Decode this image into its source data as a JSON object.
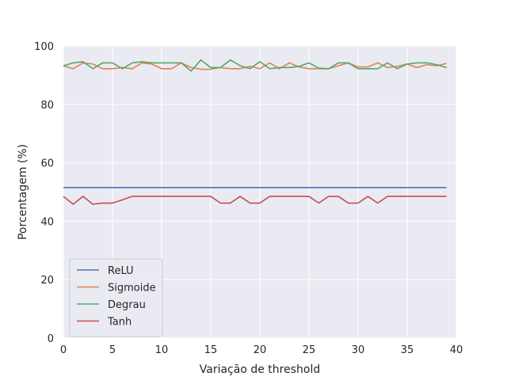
{
  "chart_data": {
    "type": "line",
    "title": "",
    "xlabel": "Variação de threshold",
    "ylabel": "Porcentagem (%)",
    "xlim": [
      0,
      40
    ],
    "ylim": [
      0,
      100
    ],
    "xticks": [
      0,
      5,
      10,
      15,
      20,
      25,
      30,
      35,
      40
    ],
    "yticks": [
      0,
      20,
      40,
      60,
      80,
      100
    ],
    "grid": true,
    "legend_position": "lower-left",
    "x": [
      0,
      1,
      2,
      3,
      4,
      5,
      6,
      7,
      8,
      9,
      10,
      11,
      12,
      13,
      14,
      15,
      16,
      17,
      18,
      19,
      20,
      21,
      22,
      23,
      24,
      25,
      26,
      27,
      28,
      29,
      30,
      31,
      32,
      33,
      34,
      35,
      36,
      37,
      38,
      39
    ],
    "series": [
      {
        "name": "ReLU",
        "color": "#4c72b0",
        "values": [
          51.5,
          51.5,
          51.5,
          51.5,
          51.5,
          51.5,
          51.5,
          51.5,
          51.5,
          51.5,
          51.5,
          51.5,
          51.5,
          51.5,
          51.5,
          51.5,
          51.5,
          51.5,
          51.5,
          51.5,
          51.5,
          51.5,
          51.5,
          51.5,
          51.5,
          51.5,
          51.5,
          51.5,
          51.5,
          51.5,
          51.5,
          51.5,
          51.5,
          51.5,
          51.5,
          51.5,
          51.5,
          51.5,
          51.5,
          51.5
        ]
      },
      {
        "name": "Sigmoide",
        "color": "#dd8452",
        "values": [
          93.2,
          92.2,
          94.2,
          93.8,
          92.2,
          92.2,
          92.6,
          92.2,
          94.2,
          93.8,
          92.2,
          92.2,
          94.2,
          92.6,
          92.0,
          92.0,
          92.6,
          92.2,
          92.2,
          93.0,
          92.2,
          94.2,
          92.2,
          94.2,
          92.8,
          92.2,
          92.2,
          92.2,
          93.2,
          94.2,
          92.8,
          92.8,
          94.2,
          92.6,
          93.0,
          93.8,
          92.6,
          93.6,
          93.2,
          94.0
        ]
      },
      {
        "name": "Degrau",
        "color": "#55a868",
        "values": [
          93.2,
          94.2,
          94.6,
          92.2,
          94.2,
          94.2,
          92.2,
          94.2,
          94.6,
          94.2,
          94.2,
          94.2,
          94.2,
          91.4,
          95.2,
          92.6,
          92.6,
          95.2,
          93.2,
          92.2,
          94.6,
          92.2,
          92.6,
          92.6,
          93.0,
          94.2,
          92.4,
          92.2,
          94.2,
          94.2,
          92.2,
          92.2,
          92.2,
          94.2,
          92.2,
          93.8,
          94.2,
          94.2,
          93.6,
          92.6
        ]
      },
      {
        "name": "Tanh",
        "color": "#c44e52",
        "values": [
          48.5,
          45.8,
          48.5,
          45.8,
          46.2,
          46.2,
          47.3,
          48.5,
          48.5,
          48.5,
          48.5,
          48.5,
          48.5,
          48.5,
          48.5,
          48.5,
          46.2,
          46.2,
          48.5,
          46.2,
          46.2,
          48.5,
          48.5,
          48.5,
          48.5,
          48.5,
          46.2,
          48.5,
          48.5,
          46.2,
          46.2,
          48.5,
          46.2,
          48.5,
          48.5,
          48.5,
          48.5,
          48.5,
          48.5,
          48.5
        ]
      }
    ]
  }
}
